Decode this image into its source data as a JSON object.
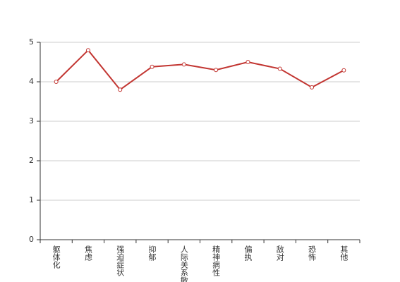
{
  "chart_data": {
    "type": "line",
    "categories": [
      "躯体化",
      "焦虑",
      "强迫症状",
      "抑郁",
      "人际关系敏感",
      "精神病性",
      "偏执",
      "敌对",
      "恐怖",
      "其他"
    ],
    "values": [
      4.0,
      4.8,
      3.8,
      4.38,
      4.44,
      4.3,
      4.5,
      4.33,
      3.86,
      4.29
    ],
    "color": "#c23531",
    "ylim": [
      0,
      5
    ],
    "yticks": [
      0,
      1,
      2,
      3,
      4,
      5
    ],
    "grid": true
  }
}
